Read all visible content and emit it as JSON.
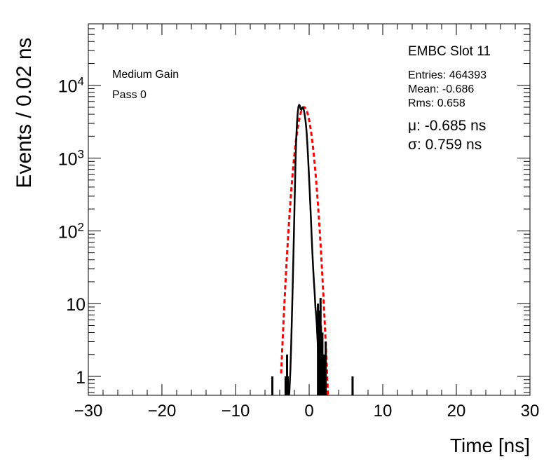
{
  "chart_data": {
    "type": "histogram",
    "title": "EMBC Slot 11",
    "xlabel": "Time [ns]",
    "ylabel": "Events / 0.02 ns",
    "xlim": [
      -30,
      30
    ],
    "ylim": [
      0.55,
      70000
    ],
    "yscale": "log",
    "x_ticks": [
      -30,
      -20,
      -10,
      0,
      10,
      20,
      30
    ],
    "x_tick_labels": [
      "−30",
      "−20",
      "−10",
      "0",
      "10",
      "20",
      "30"
    ],
    "y_ticks": [
      1,
      10,
      100,
      1000,
      10000
    ],
    "y_tick_labels": {
      "1": {
        "base": "1",
        "exp": ""
      },
      "10": {
        "base": "10",
        "exp": ""
      },
      "100": {
        "base": "10",
        "exp": "2"
      },
      "1000": {
        "base": "10",
        "exp": "3"
      },
      "10000": {
        "base": "10",
        "exp": "4"
      }
    },
    "labels": [
      "Medium Gain",
      "Pass 0"
    ],
    "stats": {
      "entries": "Entries: 464393",
      "mean": "Mean: -0.686",
      "rms": "Rms: 0.658"
    },
    "fit": {
      "mu_text": "μ: -0.685 ns",
      "sigma_text": "σ: 0.759 ns",
      "mu": -0.685,
      "sigma": 0.759,
      "amplitude": 5000,
      "color": "#ff0000",
      "style": "dashed",
      "x_range": [
        -3.8,
        2.6
      ]
    },
    "histogram": {
      "color": "#000000",
      "points": [
        [
          -2.7,
          0.56
        ],
        [
          -2.55,
          1.2
        ],
        [
          -2.45,
          2.5
        ],
        [
          -2.35,
          6
        ],
        [
          -2.25,
          15
        ],
        [
          -2.15,
          40
        ],
        [
          -2.05,
          110
        ],
        [
          -1.95,
          330
        ],
        [
          -1.85,
          900
        ],
        [
          -1.75,
          1900
        ],
        [
          -1.65,
          3100
        ],
        [
          -1.55,
          4200
        ],
        [
          -1.45,
          5100
        ],
        [
          -1.35,
          5400
        ],
        [
          -1.25,
          5200
        ],
        [
          -1.15,
          4700
        ],
        [
          -1.05,
          4600
        ],
        [
          -0.95,
          4900
        ],
        [
          -0.85,
          5000
        ],
        [
          -0.75,
          4700
        ],
        [
          -0.65,
          4200
        ],
        [
          -0.55,
          3600
        ],
        [
          -0.45,
          3000
        ],
        [
          -0.35,
          2300
        ],
        [
          -0.25,
          1600
        ],
        [
          -0.15,
          1050
        ],
        [
          -0.05,
          650
        ],
        [
          0.05,
          400
        ],
        [
          0.15,
          240
        ],
        [
          0.25,
          140
        ],
        [
          0.35,
          80
        ],
        [
          0.45,
          48
        ],
        [
          0.55,
          30
        ],
        [
          0.65,
          20
        ],
        [
          0.75,
          14
        ],
        [
          0.85,
          9
        ],
        [
          0.95,
          7
        ],
        [
          1.05,
          5
        ],
        [
          1.15,
          3
        ],
        [
          1.25,
          2
        ],
        [
          1.35,
          1.3
        ],
        [
          1.45,
          0.56
        ]
      ],
      "spikes": [
        [
          -5.0,
          1
        ],
        [
          -3.2,
          1
        ],
        [
          -3.0,
          2
        ],
        [
          -2.9,
          1
        ],
        [
          1.2,
          10
        ],
        [
          1.3,
          8
        ],
        [
          1.45,
          6
        ],
        [
          1.55,
          12
        ],
        [
          1.6,
          5
        ],
        [
          1.7,
          3
        ],
        [
          1.8,
          4
        ],
        [
          1.9,
          2
        ],
        [
          2.0,
          1
        ],
        [
          2.1,
          2
        ],
        [
          2.25,
          3
        ],
        [
          5.9,
          1
        ]
      ]
    }
  }
}
